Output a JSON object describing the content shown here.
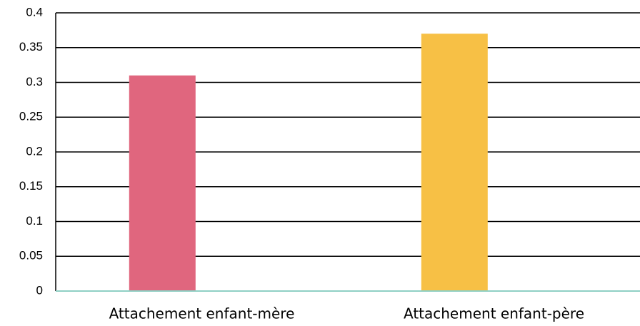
{
  "chart_data": {
    "type": "bar",
    "categories": [
      "Attachement enfant-mère",
      "Attachement enfant-père"
    ],
    "values": [
      0.31,
      0.37
    ],
    "colors": [
      "#e0667e",
      "#f7c045"
    ],
    "ylim": [
      0,
      0.4
    ],
    "yticks": [
      0,
      0.05,
      0.1,
      0.15,
      0.2,
      0.25,
      0.3,
      0.35,
      0.4
    ],
    "grid": true
  }
}
